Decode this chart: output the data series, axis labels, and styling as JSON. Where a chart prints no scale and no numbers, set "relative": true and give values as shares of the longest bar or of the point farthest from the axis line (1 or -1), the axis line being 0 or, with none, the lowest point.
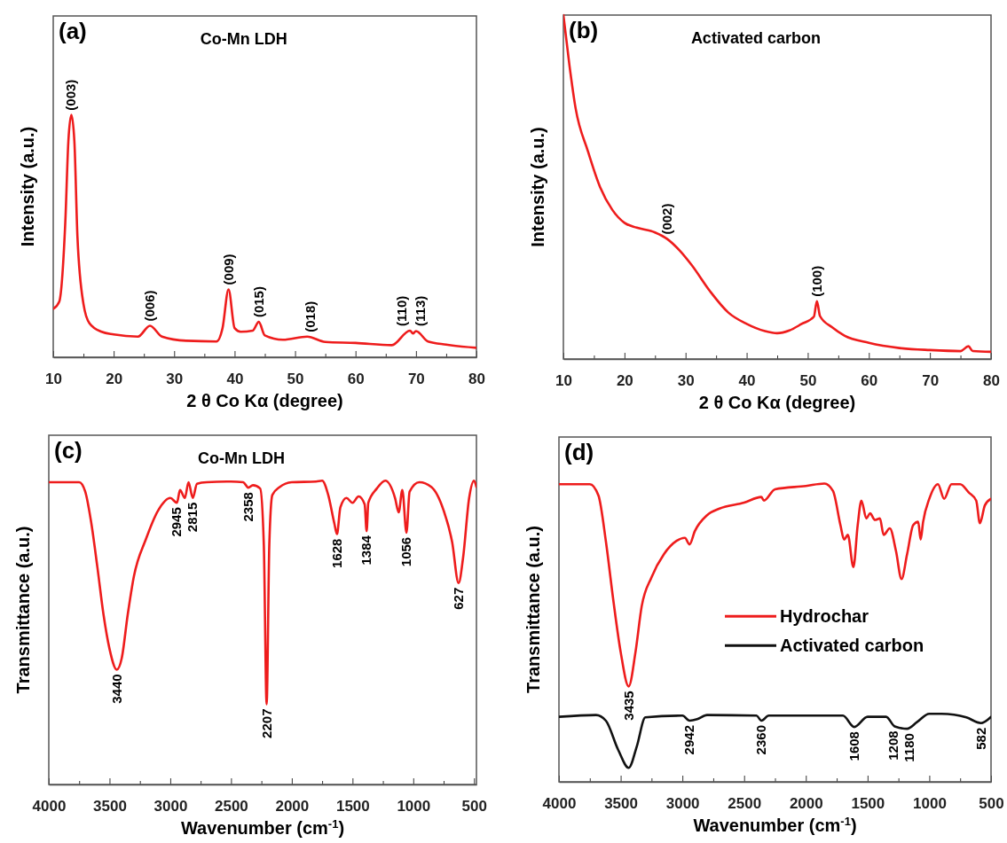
{
  "chart_data": [
    {
      "type": "line",
      "title": "Co-Mn LDH",
      "xlabel": "2 θ Co Kα (degree)",
      "ylabel": "Intensity (a.u.)",
      "relative": true,
      "xlim": [
        10,
        80
      ],
      "xticks": [
        10,
        {
          "value": 15,
          "label": null
        },
        20,
        {
          "value": 25,
          "label": null
        },
        30,
        {
          "value": 35,
          "label": null
        },
        40,
        {
          "value": 45,
          "label": null
        },
        50,
        {
          "value": 55,
          "label": null
        },
        60,
        {
          "value": 65,
          "label": null
        },
        70,
        {
          "value": 75,
          "label": null
        },
        80
      ],
      "series": [
        {
          "color": "#ee1c1c",
          "x": [
            10,
            11,
            12,
            12.5,
            13,
            13.5,
            14,
            15,
            16,
            18,
            20,
            24,
            26,
            28,
            32,
            37,
            38,
            39,
            40,
            41,
            43,
            44,
            45,
            48,
            52,
            55,
            60,
            66,
            69,
            69.5,
            70,
            72,
            75,
            80
          ],
          "values": [
            0.2,
            0.23,
            0.56,
            0.89,
            1,
            0.89,
            0.5,
            0.22,
            0.14,
            0.105,
            0.094,
            0.085,
            0.13,
            0.085,
            0.068,
            0.065,
            0.12,
            0.28,
            0.12,
            0.105,
            0.11,
            0.146,
            0.09,
            0.072,
            0.085,
            0.063,
            0.059,
            0.05,
            0.11,
            0.098,
            0.108,
            0.065,
            0.052,
            0.039
          ]
        }
      ],
      "annotations": [
        "(a)",
        {
          "text": "(003)",
          "x": 13,
          "y": 1
        },
        {
          "text": "(006)",
          "x": 26,
          "y": 0.13
        },
        {
          "text": "(009)",
          "x": 39,
          "y": 0.28
        },
        {
          "text": "(015)",
          "x": 44,
          "y": 0.146
        },
        {
          "text": "(018)",
          "x": 52.5,
          "y": 0.085
        },
        {
          "text": "(110)",
          "x": 67.6,
          "y": 0.11
        },
        {
          "text": "(113)",
          "x": 70.8,
          "y": 0.11
        }
      ]
    },
    {
      "type": "line",
      "title": "Activated carbon",
      "xlabel": "2 θ Co Kα (degree)",
      "ylabel": "Intensity (a.u.)",
      "relative": true,
      "xlim": [
        10,
        80
      ],
      "xticks": [
        10,
        {
          "value": 15,
          "label": null
        },
        20,
        {
          "value": 25,
          "label": null
        },
        30,
        {
          "value": 35,
          "label": null
        },
        40,
        {
          "value": 45,
          "label": null
        },
        50,
        {
          "value": 55,
          "label": null
        },
        60,
        {
          "value": 65,
          "label": null
        },
        70,
        {
          "value": 75,
          "label": null
        },
        80
      ],
      "series": [
        {
          "color": "#ee1c1c",
          "x": [
            10,
            11,
            12,
            14,
            16,
            18,
            20,
            22,
            25,
            27,
            29,
            31,
            34,
            37,
            40,
            43,
            45,
            47,
            49,
            51,
            51.5,
            52,
            54,
            56,
            60,
            65,
            70,
            75,
            76.3,
            77,
            80
          ],
          "values": [
            1,
            0.853,
            0.729,
            0.605,
            0.5,
            0.434,
            0.396,
            0.382,
            0.368,
            0.349,
            0.316,
            0.273,
            0.197,
            0.135,
            0.102,
            0.081,
            0.075,
            0.083,
            0.102,
            0.123,
            0.168,
            0.125,
            0.092,
            0.068,
            0.047,
            0.032,
            0.026,
            0.023,
            0.037,
            0.023,
            0.021
          ]
        }
      ],
      "annotations": [
        "(b)",
        {
          "text": "(002)",
          "x": 27,
          "y": 0.349
        },
        {
          "text": "(100)",
          "x": 51.5,
          "y": 0.168
        }
      ]
    },
    {
      "type": "line",
      "title": "Co-Mn LDH",
      "xlabel": "Wavenumber (cm$^{-1}$)",
      "ylabel": "Transmittance (a.u.)",
      "relative": true,
      "xlim": [
        4000,
        480
      ],
      "xticks": [
        4000,
        {
          "value": 3750,
          "label": null
        },
        3500,
        {
          "value": 3250,
          "label": null
        },
        3000,
        {
          "value": 2750,
          "label": null
        },
        2500,
        {
          "value": 2250,
          "label": null
        },
        2000,
        {
          "value": 1750,
          "label": null
        },
        1500,
        {
          "value": 1250,
          "label": null
        },
        1000,
        {
          "value": 750,
          "label": null
        },
        500
      ],
      "series": [
        {
          "color": "#ee1c1c",
          "x": [
            4000,
            3750,
            3700,
            3650,
            3600,
            3550,
            3500,
            3440,
            3400,
            3350,
            3300,
            3200,
            3100,
            3000,
            2945,
            2920,
            2880,
            2850,
            2815,
            2780,
            2700,
            2500,
            2400,
            2358,
            2320,
            2260,
            2230,
            2207,
            2185,
            2160,
            2100,
            2000,
            1800,
            1750,
            1700,
            1650,
            1628,
            1600,
            1550,
            1500,
            1450,
            1400,
            1384,
            1370,
            1300,
            1230,
            1150,
            1120,
            1090,
            1056,
            1030,
            950,
            850,
            750,
            680,
            627,
            590,
            540,
            500,
            480
          ],
          "values": [
            0.995,
            0.995,
            0.964,
            0.86,
            0.715,
            0.56,
            0.446,
            0.378,
            0.415,
            0.56,
            0.684,
            0.808,
            0.902,
            0.943,
            0.927,
            0.969,
            0.943,
            0.995,
            0.943,
            0.99,
            0.995,
            0.997,
            0.995,
            0.977,
            0.985,
            0.974,
            0.788,
            0.264,
            0.788,
            0.953,
            0.979,
            0.995,
            0.997,
            1,
            0.953,
            0.86,
            0.824,
            0.912,
            0.943,
            0.927,
            0.948,
            0.922,
            0.834,
            0.927,
            0.974,
            1,
            0.943,
            0.896,
            0.969,
            0.829,
            0.964,
            0.995,
            0.979,
            0.902,
            0.798,
            0.663,
            0.746,
            0.943,
            1,
            0.979
          ]
        }
      ],
      "annotations": [
        "(c)",
        {
          "text": "3440",
          "x": 3440,
          "y": 0.378
        },
        {
          "text": "2945",
          "x": 2945,
          "y": 0.927
        },
        {
          "text": "2815",
          "x": 2815,
          "y": 0.943
        },
        {
          "text": "2358",
          "x": 2358,
          "y": 0.977
        },
        {
          "text": "2207",
          "x": 2207,
          "y": 0.264
        },
        {
          "text": "1628",
          "x": 1628,
          "y": 0.824
        },
        {
          "text": "1384",
          "x": 1384,
          "y": 0.834
        },
        {
          "text": "1056",
          "x": 1056,
          "y": 0.829
        },
        {
          "text": "627",
          "x": 627,
          "y": 0.663
        }
      ]
    },
    {
      "type": "line",
      "xlabel": "Wavenumber (cm$^{-1}$)",
      "ylabel": "Transmittance (a.u.)",
      "relative": true,
      "xlim": [
        4000,
        500
      ],
      "legend": "right",
      "xticks": [
        4000,
        {
          "value": 3750,
          "label": null
        },
        3500,
        {
          "value": 3250,
          "label": null
        },
        3000,
        {
          "value": 2750,
          "label": null
        },
        2500,
        {
          "value": 2250,
          "label": null
        },
        2000,
        {
          "value": 1750,
          "label": null
        },
        1500,
        {
          "value": 1250,
          "label": null
        },
        1000,
        {
          "value": 750,
          "label": null
        },
        500
      ],
      "series": [
        {
          "name": "Hydrochar",
          "color": "#ee1c1c",
          "x": [
            4000,
            3750,
            3680,
            3620,
            3560,
            3500,
            3435,
            3380,
            3330,
            3250,
            3150,
            3050,
            2980,
            2942,
            2900,
            2800,
            2700,
            2500,
            2360,
            2340,
            2250,
            2000,
            1850,
            1780,
            1720,
            1690,
            1660,
            1615,
            1580,
            1550,
            1510,
            1480,
            1440,
            1400,
            1370,
            1320,
            1270,
            1225,
            1180,
            1130,
            1090,
            1070,
            1050,
            1000,
            930,
            880,
            820,
            750,
            680,
            620,
            590,
            550,
            500
          ],
          "values": [
            0.998,
            0.998,
            0.96,
            0.807,
            0.61,
            0.435,
            0.32,
            0.435,
            0.588,
            0.686,
            0.763,
            0.807,
            0.818,
            0.796,
            0.84,
            0.894,
            0.916,
            0.936,
            0.955,
            0.943,
            0.981,
            0.992,
            1,
            0.975,
            0.861,
            0.812,
            0.828,
            0.72,
            0.861,
            0.943,
            0.883,
            0.9,
            0.878,
            0.883,
            0.828,
            0.85,
            0.774,
            0.68,
            0.763,
            0.861,
            0.872,
            0.812,
            0.872,
            0.949,
            0.998,
            0.949,
            0.998,
            0.998,
            0.97,
            0.943,
            0.867,
            0.927,
            0.949
          ]
        },
        {
          "name": "Activated carbon",
          "color": "#111111",
          "x": [
            4000,
            3700,
            3620,
            3520,
            3435,
            3370,
            3300,
            3000,
            2942,
            2880,
            2800,
            2400,
            2360,
            2300,
            1700,
            1608,
            1500,
            1350,
            1280,
            1180,
            1100,
            1000,
            900,
            700,
            582,
            500
          ],
          "values": [
            0.218,
            0.224,
            0.205,
            0.107,
            0.047,
            0.118,
            0.216,
            0.222,
            0.205,
            0.21,
            0.224,
            0.222,
            0.205,
            0.222,
            0.222,
            0.184,
            0.218,
            0.218,
            0.186,
            0.178,
            0.2,
            0.228,
            0.228,
            0.216,
            0.197,
            0.218
          ]
        }
      ],
      "annotations": [
        "(d)",
        {
          "text": "3435",
          "x": 3435,
          "y": 0.32
        },
        {
          "text": "2942",
          "x": 2942,
          "y": 0.205
        },
        {
          "text": "2360",
          "x": 2360,
          "y": 0.205
        },
        {
          "text": "1608",
          "x": 1608,
          "y": 0.184
        },
        {
          "text": "1208",
          "x": 1290,
          "y": 0.186
        },
        {
          "text": "1180",
          "x": 1160,
          "y": 0.178
        },
        {
          "text": "582",
          "x": 582,
          "y": 0.197
        }
      ]
    }
  ]
}
